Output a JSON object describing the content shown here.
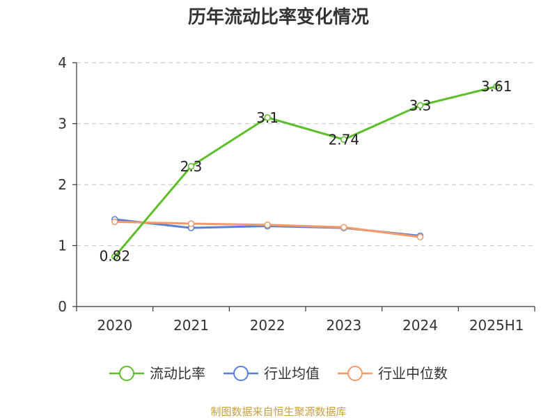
{
  "chart_data": {
    "type": "line",
    "title": "历年流动比率变化情况",
    "categories": [
      "2020",
      "2021",
      "2022",
      "2023",
      "2024",
      "2025H1"
    ],
    "ylim": [
      0,
      4
    ],
    "yticks": [
      "0",
      "1",
      "2",
      "3",
      "4"
    ],
    "grid": true,
    "legend_position": "bottom",
    "series": [
      {
        "name": "流动比率",
        "color": "#5cbf2a",
        "values": [
          0.82,
          2.3,
          3.1,
          2.74,
          3.3,
          3.61
        ],
        "labels": [
          "0.82",
          "2.3",
          "3.1",
          "2.74",
          "3.3",
          "3.61"
        ]
      },
      {
        "name": "行业均值",
        "color": "#5b7fd6",
        "values": [
          1.43,
          1.29,
          1.32,
          1.29,
          1.16,
          null
        ]
      },
      {
        "name": "行业中位数",
        "color": "#f39a6a",
        "values": [
          1.39,
          1.36,
          1.34,
          1.3,
          1.14,
          null
        ]
      }
    ]
  },
  "source": {
    "text": "制图数据来自恒生聚源数据库",
    "color": "#c8a040"
  }
}
